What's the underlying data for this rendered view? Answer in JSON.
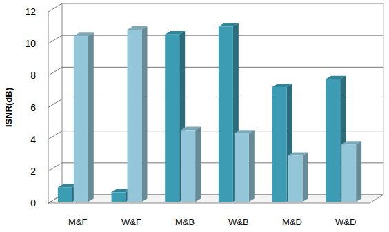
{
  "chart_data": {
    "type": "bar",
    "y_label": "ISNR(dB)",
    "categories": [
      "M&F",
      "W&F",
      "M&B",
      "W&B",
      "M&D",
      "W&D"
    ],
    "series": [
      {
        "color": "#3b9cb3",
        "values": [
          0.9,
          0.6,
          10.5,
          11.0,
          7.2,
          7.7
        ]
      },
      {
        "color": "#93c6d8",
        "values": [
          10.4,
          10.8,
          4.5,
          4.3,
          2.9,
          3.6
        ]
      }
    ],
    "ylim": [
      0,
      12
    ],
    "yticks": [
      0,
      2,
      4,
      6,
      8,
      10,
      12
    ],
    "grid": true
  }
}
